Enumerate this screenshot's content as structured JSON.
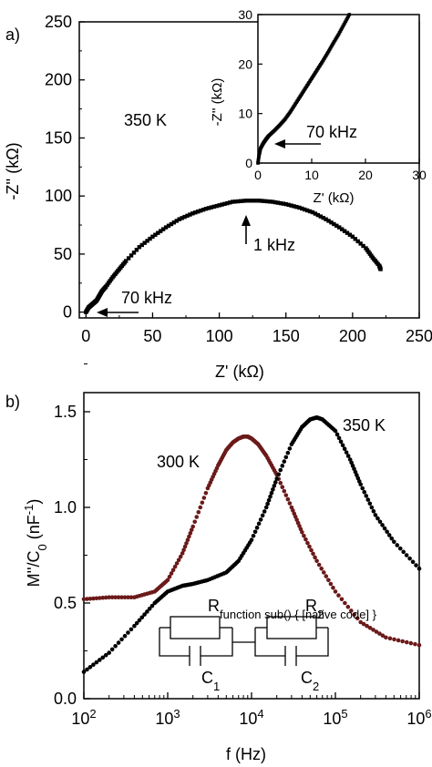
{
  "chart_data": [
    {
      "panel": "a)",
      "type": "scatter",
      "xlabel": "Z' (kΩ)",
      "ylabel": "-Z'' (kΩ)",
      "xlim": [
        -5,
        250
      ],
      "ylim": [
        -5,
        250
      ],
      "xticks": [
        "0",
        "50",
        "100",
        "150",
        "200",
        "250"
      ],
      "yticks": [
        "0",
        "50",
        "100",
        "150",
        "200",
        "250"
      ],
      "annotations": {
        "temperature": "350 K",
        "low_freq": "1 kHz",
        "high_freq": "70 kHz"
      },
      "series": [
        {
          "color": "#000000",
          "x": [
            0,
            2,
            4,
            6,
            8,
            10,
            12,
            15,
            20,
            25,
            30,
            40,
            50,
            60,
            70,
            80,
            90,
            100,
            110,
            120,
            125,
            130,
            140,
            150,
            160,
            170,
            180,
            190,
            200,
            210,
            215,
            220,
            221
          ],
          "y": [
            0,
            4,
            6,
            8,
            10,
            14,
            18,
            22,
            30,
            37,
            44,
            56,
            65,
            73,
            80,
            85,
            89,
            92,
            95,
            96,
            96,
            96,
            95,
            93,
            90,
            86,
            80,
            73,
            65,
            55,
            47,
            40,
            37
          ]
        }
      ]
    },
    {
      "panel": "inset",
      "type": "scatter",
      "xlabel": "Z' (kΩ)",
      "ylabel": "-Z'' (kΩ)",
      "xlim": [
        0,
        30
      ],
      "ylim": [
        0,
        30
      ],
      "xticks": [
        "0",
        "10",
        "20",
        "30"
      ],
      "yticks": [
        "0",
        "10",
        "20",
        "30"
      ],
      "annotations": {
        "high_freq": "70 kHz"
      },
      "series": [
        {
          "color": "#000000",
          "x": [
            0,
            0.2,
            0.5,
            1,
            1.5,
            2,
            3,
            4,
            5,
            6,
            7,
            8,
            9,
            10,
            11,
            12,
            13,
            14,
            15,
            16,
            17
          ],
          "y": [
            0,
            1.5,
            3,
            4,
            4.8,
            5.5,
            6.5,
            7.6,
            8.8,
            10.3,
            12,
            13.7,
            15.4,
            17.1,
            18.8,
            20.5,
            22.3,
            24.2,
            26,
            28,
            30
          ]
        }
      ]
    },
    {
      "panel": "b)",
      "type": "scatter",
      "xlabel": "f (Hz)",
      "ylabel": "M''/C0 (nF-1)",
      "xscale": "log",
      "xlim": [
        100,
        1000000
      ],
      "ylim": [
        0,
        1.6
      ],
      "xticks": [
        "10^2",
        "10^3",
        "10^4",
        "10^5",
        "10^6"
      ],
      "yticks": [
        "0.0",
        "0.5",
        "1.0",
        "1.5"
      ],
      "annotations": {
        "circuit": [
          "R1",
          "R2",
          "C1",
          "C2"
        ]
      },
      "series": [
        {
          "name": "300 K",
          "color": "#6b1a1a",
          "x": [
            100,
            200,
            400,
            700,
            1000,
            1500,
            2000,
            3000,
            4000,
            5000,
            6000,
            7000,
            8000,
            9000,
            10000,
            12000,
            15000,
            20000,
            30000,
            40000,
            60000,
            100000,
            200000,
            400000,
            1000000
          ],
          "y": [
            0.52,
            0.53,
            0.53,
            0.56,
            0.62,
            0.76,
            0.9,
            1.1,
            1.22,
            1.3,
            1.34,
            1.36,
            1.37,
            1.37,
            1.36,
            1.33,
            1.27,
            1.17,
            1.0,
            0.87,
            0.72,
            0.56,
            0.4,
            0.32,
            0.28
          ]
        },
        {
          "name": "350 K",
          "color": "#000000",
          "x": [
            100,
            200,
            400,
            700,
            1000,
            1500,
            2000,
            3000,
            5000,
            7000,
            10000,
            15000,
            20000,
            30000,
            40000,
            50000,
            60000,
            70000,
            100000,
            150000,
            200000,
            300000,
            500000,
            1000000
          ],
          "y": [
            0.14,
            0.24,
            0.38,
            0.5,
            0.56,
            0.59,
            0.6,
            0.62,
            0.66,
            0.72,
            0.83,
            1.0,
            1.15,
            1.33,
            1.42,
            1.46,
            1.47,
            1.46,
            1.4,
            1.25,
            1.12,
            0.96,
            0.82,
            0.68
          ]
        }
      ]
    }
  ]
}
